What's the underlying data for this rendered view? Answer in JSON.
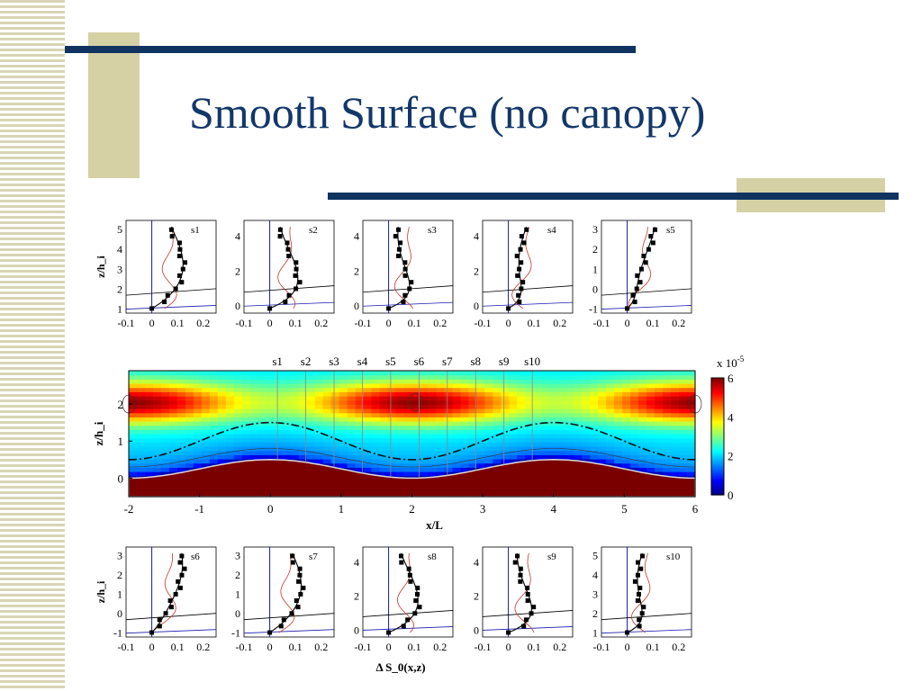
{
  "slide": {
    "title": "Smooth Surface (no canopy)",
    "colors": {
      "title": "#12376a",
      "bars": "#10335f",
      "accent_blocks": "#d6d1a5"
    }
  },
  "chart_data": [
    {
      "type": "heatmap",
      "name": "main-field",
      "xlabel": "x/L",
      "ylabel": "z/h_i",
      "xlim": [
        -2,
        6
      ],
      "ylim": [
        -0.5,
        2.9
      ],
      "x_ticks": [
        "-2",
        "-1",
        "0",
        "1",
        "2",
        "3",
        "4",
        "5",
        "6"
      ],
      "y_ticks": [
        "0",
        "1",
        "2"
      ],
      "station_labels": [
        "s1",
        "s2",
        "s3",
        "s4",
        "s5",
        "s6",
        "s7",
        "s8",
        "s9",
        "s10"
      ],
      "station_x": [
        0.1,
        0.5,
        0.9,
        1.3,
        1.7,
        2.1,
        2.5,
        2.9,
        3.3,
        3.7
      ],
      "colorbar": {
        "label": "x 10",
        "exponent": "-5",
        "ticks": [
          "0",
          "2",
          "4",
          "6"
        ],
        "range": [
          0,
          6
        ],
        "colormap": "jet"
      },
      "terrain": "sinusoidal hill, crests at x/L = 0 and 4, height ~0.5",
      "dashdot_line": "sinusoidal, z ~ 1.0 ± 0.5, in phase with terrain"
    },
    {
      "type": "line",
      "name": "profile-panels-top",
      "stations": [
        "s1",
        "s2",
        "s3",
        "s4",
        "s5"
      ],
      "ylabel": "z/h_i",
      "x_ticks": [
        "-0.1",
        "0",
        "0.1",
        "0.2"
      ],
      "y_ticks": [
        [
          "1",
          "2",
          "3",
          "4",
          "5"
        ],
        [
          "0",
          "2",
          "4"
        ],
        [
          "0",
          "2",
          "4"
        ],
        [
          "0",
          "2",
          "4"
        ],
        [
          "-1",
          "0",
          "1",
          "2",
          "3"
        ]
      ]
    },
    {
      "type": "line",
      "name": "profile-panels-bottom",
      "stations": [
        "s6",
        "s7",
        "s8",
        "s9",
        "s10"
      ],
      "ylabel": "z/h_i",
      "xlabel": "Δ S_0(x,z)",
      "x_ticks": [
        "-0.1",
        "0",
        "0.1",
        "0.2"
      ],
      "y_ticks": [
        [
          "-1",
          "0",
          "1",
          "2",
          "3"
        ],
        [
          "-1",
          "0",
          "1",
          "2",
          "3"
        ],
        [
          "0",
          "2",
          "4"
        ],
        [
          "0",
          "2",
          "4"
        ],
        [
          "1",
          "2",
          "3",
          "4",
          "5"
        ]
      ]
    }
  ]
}
